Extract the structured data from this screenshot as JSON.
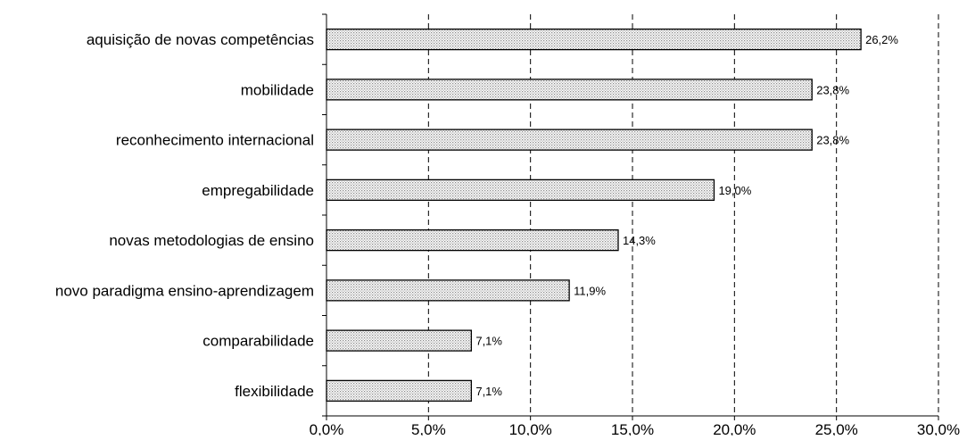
{
  "chart_data": {
    "type": "bar",
    "orientation": "horizontal",
    "categories": [
      "aquisição de novas competências",
      "mobilidade",
      "reconhecimento internacional",
      "empregabilidade",
      "novas metodologias de ensino",
      "novo paradigma ensino-aprendizagem",
      "comparabilidade",
      "flexibilidade"
    ],
    "values": [
      26.2,
      23.8,
      23.8,
      19.0,
      14.3,
      11.9,
      7.1,
      7.1
    ],
    "value_labels": [
      "26,2%",
      "23,8%",
      "23,8%",
      "19,0%",
      "14,3%",
      "11,9%",
      "7,1%",
      "7,1%"
    ],
    "x_ticks": [
      0,
      5,
      10,
      15,
      20,
      25,
      30
    ],
    "x_tick_labels": [
      "0,0%",
      "5,0%",
      "10,0%",
      "15,0%",
      "20,0%",
      "25,0%",
      "30,0%"
    ],
    "xlim": [
      0,
      30
    ],
    "title": "",
    "xlabel": "",
    "ylabel": "",
    "grid": "vertical dashed",
    "legend": "none",
    "bar_fill": "#d9d9d9",
    "bar_stroke": "#000000"
  }
}
